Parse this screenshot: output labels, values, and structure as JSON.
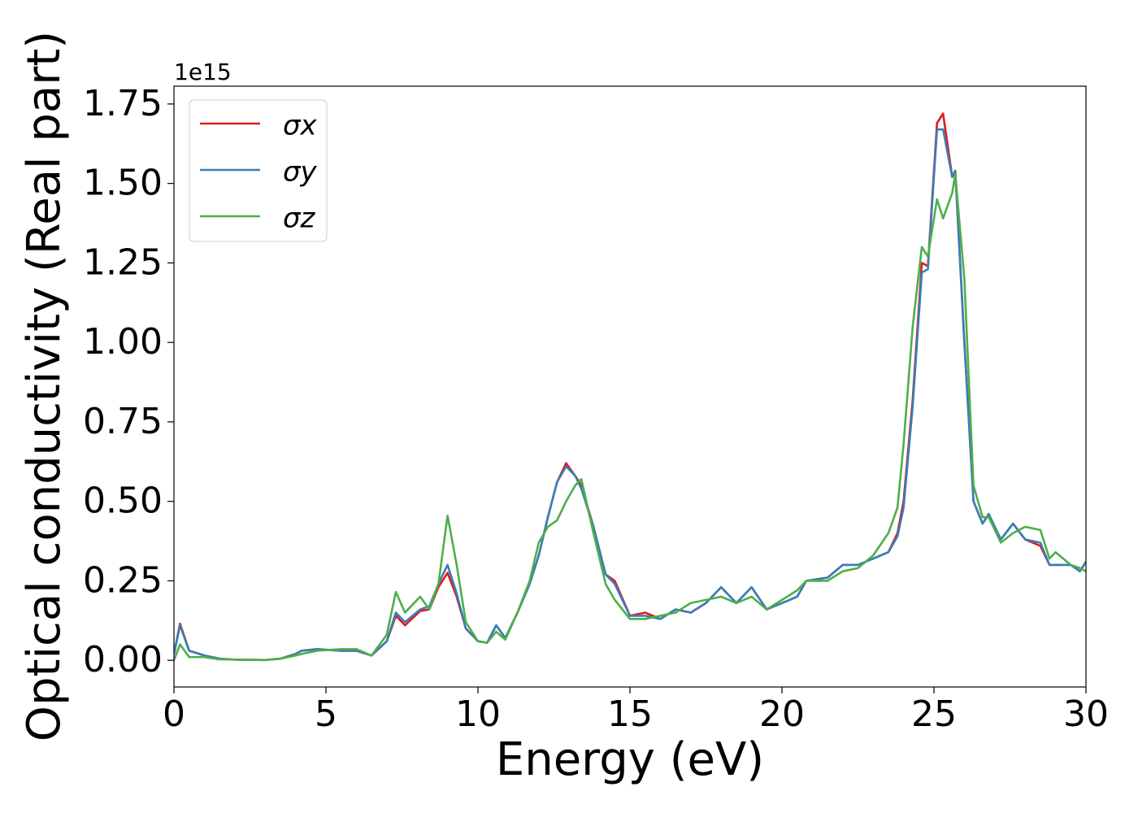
{
  "chart_data": {
    "type": "line",
    "xlabel": "Energy (eV)",
    "ylabel": "Optical conductivity (Real part)",
    "y_offset_label": "1e15",
    "x": [
      0,
      0.2,
      0.5,
      1.0,
      1.5,
      2,
      3,
      3.5,
      4,
      4.2,
      4.7,
      5.5,
      6.0,
      6.5,
      7.0,
      7.3,
      7.6,
      8.1,
      8.4,
      8.7,
      9.0,
      9.3,
      9.6,
      10.0,
      10.3,
      10.6,
      10.9,
      11.3,
      11.7,
      12.0,
      12.3,
      12.6,
      12.9,
      13.2,
      13.4,
      13.8,
      14.2,
      14.5,
      15.0,
      15.5,
      16.0,
      16.5,
      17.0,
      17.5,
      18.0,
      18.5,
      19.0,
      19.5,
      20.0,
      20.5,
      20.8,
      21.5,
      22.0,
      22.5,
      23.0,
      23.5,
      23.8,
      24.0,
      24.3,
      24.6,
      24.8,
      25.1,
      25.3,
      25.6,
      25.7,
      26.0,
      26.3,
      26.6,
      26.8,
      27.2,
      27.6,
      28.0,
      28.5,
      28.8,
      29.0,
      29.5,
      29.8,
      30
    ],
    "series": [
      {
        "name": "σx",
        "color": "#e41a1c",
        "values": [
          0.02,
          0.115,
          0.03,
          0.015,
          0.005,
          0.002,
          0.001,
          0.005,
          0.02,
          0.03,
          0.035,
          0.03,
          0.03,
          0.015,
          0.06,
          0.14,
          0.11,
          0.155,
          0.16,
          0.23,
          0.275,
          0.2,
          0.1,
          0.06,
          0.055,
          0.11,
          0.07,
          0.15,
          0.24,
          0.33,
          0.45,
          0.56,
          0.62,
          0.58,
          0.55,
          0.42,
          0.27,
          0.25,
          0.14,
          0.15,
          0.13,
          0.16,
          0.15,
          0.18,
          0.23,
          0.18,
          0.23,
          0.16,
          0.18,
          0.2,
          0.25,
          0.26,
          0.3,
          0.3,
          0.32,
          0.34,
          0.4,
          0.5,
          0.82,
          1.25,
          1.24,
          1.69,
          1.72,
          1.52,
          1.54,
          1.0,
          0.5,
          0.43,
          0.46,
          0.38,
          0.43,
          0.38,
          0.36,
          0.3,
          0.3,
          0.3,
          0.28,
          0.31
        ]
      },
      {
        "name": "σy",
        "color": "#377eb8",
        "values": [
          0.02,
          0.11,
          0.03,
          0.015,
          0.005,
          0.002,
          0.001,
          0.005,
          0.02,
          0.03,
          0.035,
          0.03,
          0.03,
          0.015,
          0.06,
          0.15,
          0.12,
          0.16,
          0.17,
          0.24,
          0.3,
          0.21,
          0.1,
          0.06,
          0.055,
          0.11,
          0.07,
          0.15,
          0.24,
          0.33,
          0.45,
          0.56,
          0.61,
          0.58,
          0.54,
          0.42,
          0.27,
          0.24,
          0.14,
          0.14,
          0.13,
          0.16,
          0.15,
          0.18,
          0.23,
          0.18,
          0.23,
          0.16,
          0.18,
          0.2,
          0.25,
          0.26,
          0.3,
          0.3,
          0.32,
          0.34,
          0.39,
          0.48,
          0.8,
          1.22,
          1.23,
          1.67,
          1.67,
          1.52,
          1.54,
          1.0,
          0.5,
          0.43,
          0.46,
          0.38,
          0.43,
          0.38,
          0.37,
          0.3,
          0.3,
          0.3,
          0.28,
          0.31
        ]
      },
      {
        "name": "σz",
        "color": "#4daf4a",
        "values": [
          0.0,
          0.05,
          0.01,
          0.01,
          0.003,
          0.002,
          0.001,
          0.005,
          0.015,
          0.02,
          0.03,
          0.035,
          0.035,
          0.015,
          0.08,
          0.215,
          0.15,
          0.2,
          0.16,
          0.24,
          0.455,
          0.3,
          0.12,
          0.06,
          0.055,
          0.09,
          0.065,
          0.15,
          0.25,
          0.37,
          0.42,
          0.44,
          0.5,
          0.55,
          0.57,
          0.4,
          0.24,
          0.19,
          0.13,
          0.13,
          0.14,
          0.15,
          0.18,
          0.19,
          0.2,
          0.18,
          0.2,
          0.16,
          0.19,
          0.22,
          0.25,
          0.25,
          0.28,
          0.29,
          0.33,
          0.4,
          0.48,
          0.68,
          1.05,
          1.3,
          1.27,
          1.45,
          1.39,
          1.47,
          1.53,
          1.2,
          0.55,
          0.45,
          0.45,
          0.37,
          0.4,
          0.42,
          0.41,
          0.32,
          0.34,
          0.3,
          0.29,
          0.28
        ]
      }
    ],
    "xlim": [
      0,
      30
    ],
    "xticks": [
      0,
      5,
      10,
      15,
      20,
      25,
      30
    ],
    "ylim": [
      -0.084,
      1.806
    ],
    "yticks": [
      {
        "value": 0,
        "label": "0.00"
      },
      {
        "value": 0.25,
        "label": "0.25"
      },
      {
        "value": 0.5,
        "label": "0.50"
      },
      {
        "value": 0.75,
        "label": "0.75"
      },
      {
        "value": 1.0,
        "label": "1.00"
      },
      {
        "value": 1.25,
        "label": "1.25"
      },
      {
        "value": 1.5,
        "label": "1.50"
      },
      {
        "value": 1.75,
        "label": "1.75"
      }
    ],
    "legend": "upper left",
    "grid": false
  }
}
